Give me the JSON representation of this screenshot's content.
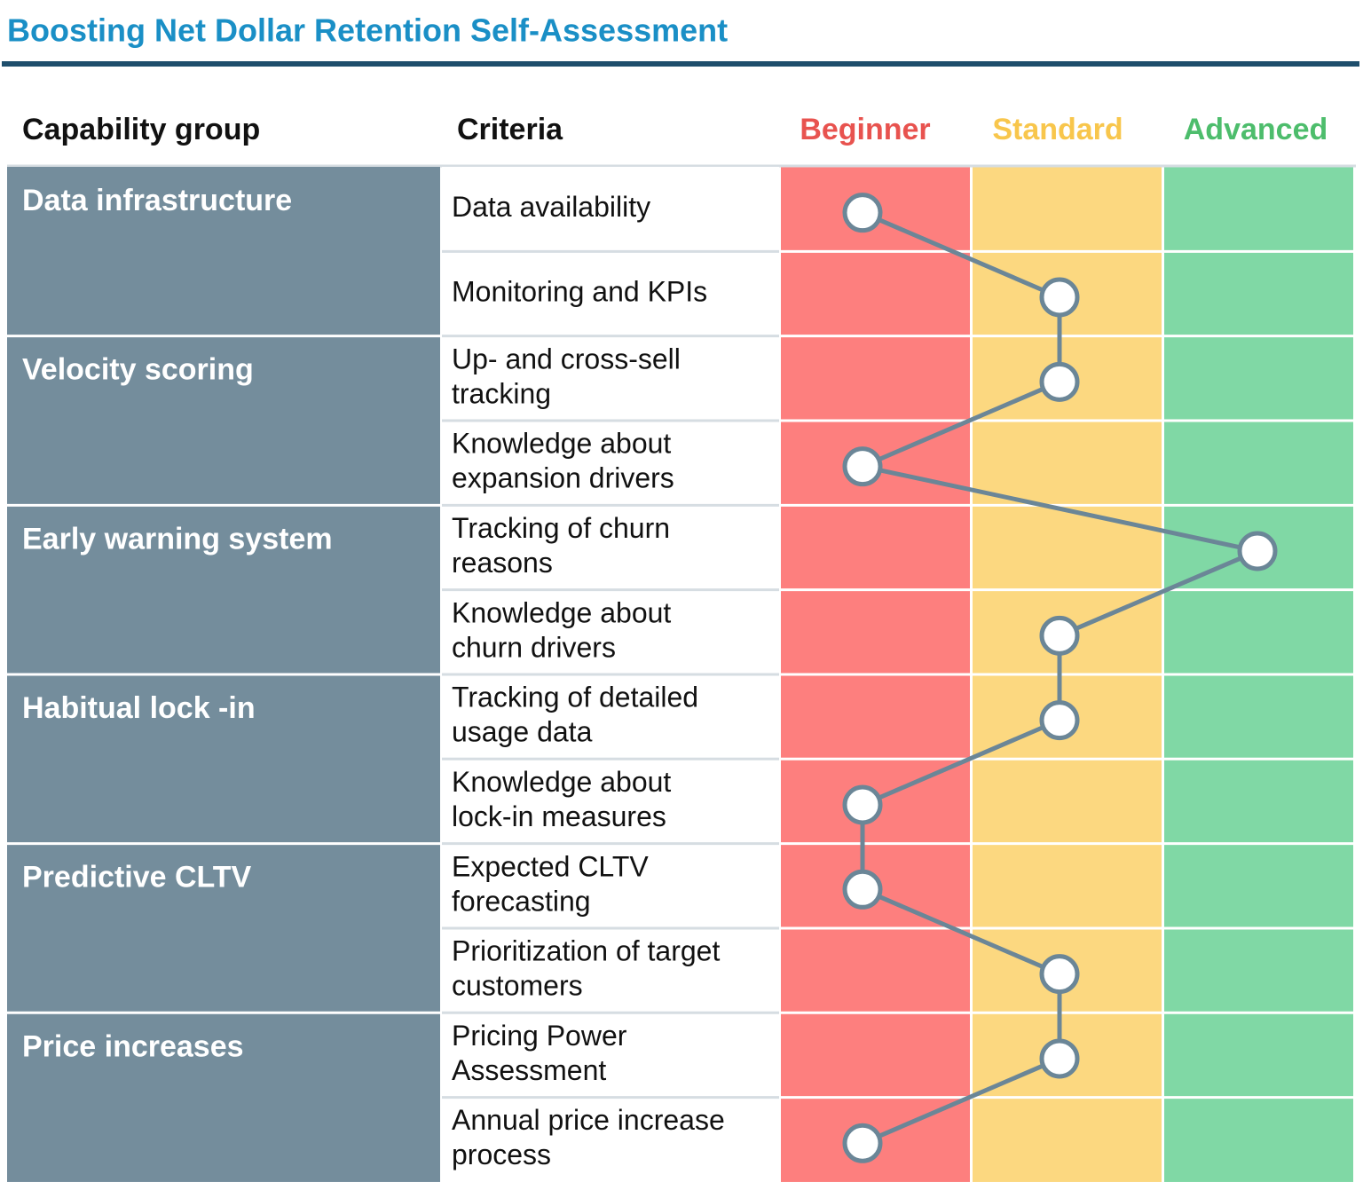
{
  "header": {
    "title": "Boosting Net Dollar Retention Self-Assessment"
  },
  "table": {
    "columns": {
      "group": "Capability group",
      "criteria": "Criteria",
      "levels": [
        "Beginner",
        "Standard",
        "Advanced"
      ]
    },
    "level_colors": {
      "header": [
        "#e8534f",
        "#f8c64c",
        "#4dbd6c"
      ],
      "fill": [
        "#fd7f7e",
        "#fcd880",
        "#80d8a5"
      ]
    },
    "groups": [
      {
        "name": "Data infrastructure",
        "criteria": [
          {
            "lines": [
              "Data availability"
            ],
            "level": 0
          },
          {
            "lines": [
              "Monitoring and KPIs"
            ],
            "level": 1
          }
        ]
      },
      {
        "name": "Velocity scoring",
        "criteria": [
          {
            "lines": [
              "Up- and cross-sell",
              "tracking"
            ],
            "level": 1
          },
          {
            "lines": [
              "Knowledge about",
              "expansion drivers"
            ],
            "level": 0
          }
        ]
      },
      {
        "name": "Early warning system",
        "criteria": [
          {
            "lines": [
              "Tracking of churn",
              "reasons"
            ],
            "level": 2
          },
          {
            "lines": [
              "Knowledge about",
              "churn drivers"
            ],
            "level": 1
          }
        ]
      },
      {
        "name": "Habitual lock -in",
        "criteria": [
          {
            "lines": [
              "Tracking of detailed",
              "usage data"
            ],
            "level": 1
          },
          {
            "lines": [
              "Knowledge about",
              "lock-in measures"
            ],
            "level": 0
          }
        ]
      },
      {
        "name": "Predictive CLTV",
        "criteria": [
          {
            "lines": [
              "Expected CLTV",
              "forecasting"
            ],
            "level": 0
          },
          {
            "lines": [
              "Prioritization of target",
              "customers"
            ],
            "level": 1
          }
        ]
      },
      {
        "name": "Price increases",
        "criteria": [
          {
            "lines": [
              "Pricing Power",
              "Assessment"
            ],
            "level": 1
          },
          {
            "lines": [
              "Annual price increase",
              "process"
            ],
            "level": 0
          }
        ]
      }
    ]
  }
}
